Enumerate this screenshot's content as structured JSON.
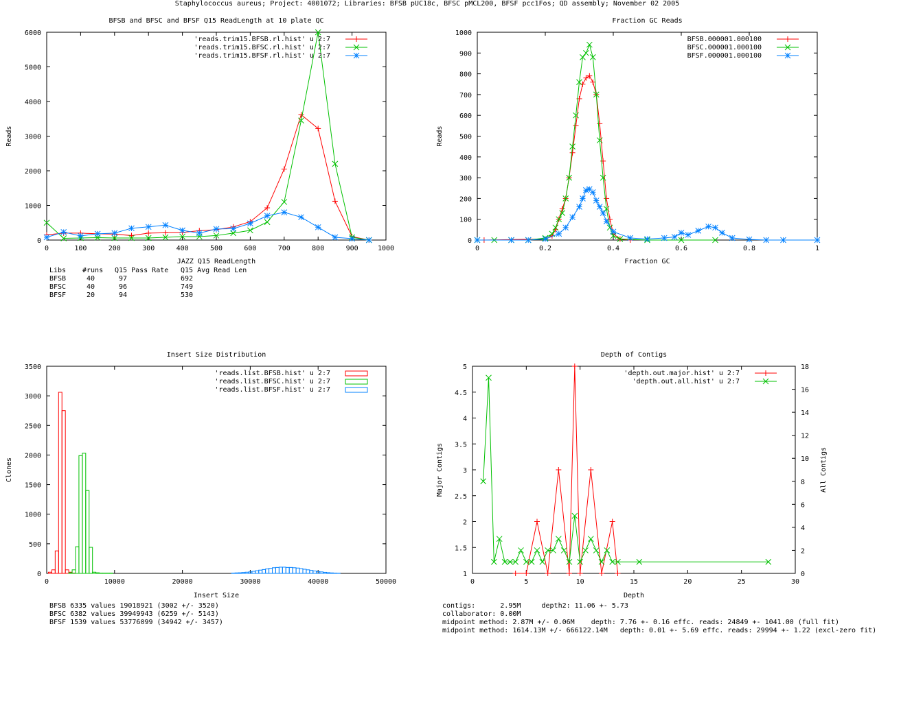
{
  "header": {
    "title": "Staphylococcus aureus; Project: 4001072; Libraries: BFSB pUC18c, BFSC pMCL200, BFSF pcc1Fos; QD assembly; November 02 2005"
  },
  "colors": {
    "red": "#ff0000",
    "green": "#00c000",
    "blue": "#0080ff"
  },
  "chart_data": [
    {
      "id": "readlength",
      "type": "line",
      "title": "BFSB and BFSC and BFSF Q15 ReadLength at 10 plate QC",
      "xlabel": "JAZZ Q15 ReadLength",
      "ylabel": "Reads",
      "xlim": [
        0,
        1000
      ],
      "ylim": [
        0,
        6000
      ],
      "xticks": [
        0,
        100,
        200,
        300,
        400,
        500,
        600,
        700,
        800,
        900,
        1000
      ],
      "yticks": [
        0,
        1000,
        2000,
        3000,
        4000,
        5000,
        6000
      ],
      "legend_position": "top-right",
      "series": [
        {
          "name": "'reads.trim15.BFSB.rl.hist' u 2:7",
          "color": "#ff0000",
          "marker": "plus",
          "x": [
            0,
            50,
            100,
            150,
            200,
            250,
            300,
            350,
            400,
            450,
            500,
            550,
            600,
            650,
            700,
            750,
            800,
            850,
            900,
            950
          ],
          "y": [
            150,
            200,
            200,
            180,
            170,
            130,
            200,
            210,
            220,
            270,
            300,
            380,
            530,
            930,
            2050,
            3620,
            3220,
            1120,
            100,
            0
          ]
        },
        {
          "name": "'reads.trim15.BFSC.rl.hist' u 2:7",
          "color": "#00c000",
          "marker": "cross",
          "x": [
            0,
            50,
            100,
            150,
            200,
            250,
            300,
            350,
            400,
            450,
            500,
            550,
            600,
            650,
            700,
            750,
            800,
            850,
            900,
            950
          ],
          "y": [
            500,
            50,
            60,
            70,
            60,
            60,
            60,
            80,
            100,
            100,
            130,
            200,
            280,
            520,
            1100,
            3450,
            6000,
            2200,
            80,
            0
          ]
        },
        {
          "name": "'reads.trim15.BFSF.rl.hist' u 2:7",
          "color": "#0080ff",
          "marker": "star",
          "x": [
            0,
            50,
            100,
            150,
            200,
            250,
            300,
            350,
            400,
            450,
            500,
            550,
            600,
            650,
            700,
            750,
            800,
            850,
            900,
            950
          ],
          "y": [
            80,
            230,
            120,
            180,
            200,
            340,
            380,
            430,
            280,
            200,
            320,
            330,
            480,
            700,
            800,
            660,
            370,
            80,
            40,
            0
          ]
        }
      ],
      "table": {
        "header": [
          "Libs",
          "#runs",
          "Q15 Pass Rate",
          "Q15 Avg Read Len"
        ],
        "rows": [
          [
            "BFSB",
            "40",
            "97",
            "692"
          ],
          [
            "BFSC",
            "40",
            "96",
            "749"
          ],
          [
            "BFSF",
            "20",
            "94",
            "530"
          ]
        ]
      }
    },
    {
      "id": "gc",
      "type": "line",
      "title": "Fraction GC Reads",
      "xlabel": "Fraction GC",
      "ylabel": "Reads",
      "xlim": [
        0,
        1
      ],
      "ylim": [
        0,
        1000
      ],
      "xticks": [
        0,
        0.2,
        0.4,
        0.6,
        0.8,
        1
      ],
      "yticks": [
        0,
        100,
        200,
        300,
        400,
        500,
        600,
        700,
        800,
        900,
        1000
      ],
      "legend_position": "top-right",
      "series": [
        {
          "name": "BFSB.000001.000100",
          "color": "#ff0000",
          "marker": "plus",
          "x": [
            0,
            0.02,
            0.2,
            0.22,
            0.23,
            0.24,
            0.25,
            0.26,
            0.27,
            0.28,
            0.29,
            0.3,
            0.31,
            0.32,
            0.33,
            0.34,
            0.35,
            0.36,
            0.37,
            0.38,
            0.39,
            0.4,
            0.42,
            0.45
          ],
          "y": [
            0,
            0,
            5,
            20,
            50,
            100,
            150,
            200,
            300,
            420,
            550,
            680,
            750,
            780,
            790,
            760,
            700,
            560,
            380,
            200,
            100,
            30,
            5,
            0
          ]
        },
        {
          "name": "BFSC.000001.000100",
          "color": "#00c000",
          "marker": "cross",
          "x": [
            0,
            0.05,
            0.1,
            0.15,
            0.2,
            0.22,
            0.23,
            0.24,
            0.25,
            0.26,
            0.27,
            0.28,
            0.29,
            0.3,
            0.31,
            0.32,
            0.33,
            0.34,
            0.35,
            0.36,
            0.37,
            0.38,
            0.39,
            0.4,
            0.42,
            0.5,
            0.6,
            0.7
          ],
          "y": [
            0,
            0,
            0,
            0,
            10,
            30,
            60,
            100,
            130,
            200,
            300,
            450,
            600,
            760,
            880,
            900,
            940,
            880,
            700,
            480,
            300,
            150,
            60,
            20,
            5,
            0,
            0,
            0
          ]
        },
        {
          "name": "BFSF.000001.000100",
          "color": "#0080ff",
          "marker": "star",
          "x": [
            0,
            0.1,
            0.15,
            0.2,
            0.24,
            0.26,
            0.28,
            0.3,
            0.31,
            0.32,
            0.33,
            0.34,
            0.35,
            0.36,
            0.37,
            0.38,
            0.4,
            0.45,
            0.5,
            0.55,
            0.58,
            0.6,
            0.62,
            0.65,
            0.68,
            0.7,
            0.72,
            0.75,
            0.8,
            0.85,
            0.9,
            1.0
          ],
          "y": [
            0,
            0,
            0,
            5,
            30,
            60,
            110,
            160,
            200,
            240,
            245,
            230,
            190,
            160,
            130,
            90,
            40,
            10,
            5,
            10,
            15,
            35,
            25,
            45,
            65,
            60,
            35,
            10,
            3,
            0,
            0,
            0
          ]
        }
      ]
    },
    {
      "id": "insert",
      "type": "bar",
      "title": "Insert Size Distribution",
      "xlabel": "Insert Size",
      "ylabel": "Clones",
      "xlim": [
        0,
        50000
      ],
      "ylim": [
        0,
        3500
      ],
      "xticks": [
        0,
        10000,
        20000,
        30000,
        40000,
        50000
      ],
      "yticks": [
        0,
        500,
        1000,
        1500,
        2000,
        2500,
        3000,
        3500
      ],
      "legend_position": "top-right",
      "bin_width": 500,
      "series": [
        {
          "name": "'reads.list.BFSB.hist' u 2:7",
          "color": "#ff0000",
          "x": [
            500,
            1000,
            1500,
            2000,
            2500,
            3000,
            3500,
            4000
          ],
          "y": [
            20,
            60,
            380,
            3060,
            2750,
            60,
            20,
            5
          ]
        },
        {
          "name": "'reads.list.BFSC.hist' u 2:7",
          "color": "#00c000",
          "x": [
            3500,
            4000,
            4500,
            5000,
            5500,
            6000,
            6500,
            7000,
            7500,
            8000,
            8500,
            9000,
            9500
          ],
          "y": [
            10,
            60,
            450,
            1990,
            2030,
            1400,
            440,
            20,
            10,
            5,
            5,
            5,
            5
          ]
        },
        {
          "name": "'reads.list.BFSF.hist' u 2:7",
          "color": "#0080ff",
          "x": [
            27500,
            28000,
            28500,
            29000,
            29500,
            30000,
            30500,
            31000,
            31500,
            32000,
            32500,
            33000,
            33500,
            34000,
            34500,
            35000,
            35500,
            36000,
            36500,
            37000,
            37500,
            38000,
            38500,
            39000,
            39500,
            40000,
            40500,
            41000,
            41500,
            42000,
            42500,
            43000
          ],
          "y": [
            5,
            8,
            10,
            15,
            20,
            25,
            35,
            45,
            55,
            65,
            75,
            85,
            95,
            100,
            105,
            105,
            100,
            100,
            95,
            90,
            80,
            70,
            60,
            50,
            40,
            32,
            25,
            18,
            12,
            8,
            5,
            3
          ]
        }
      ],
      "stats": [
        "BFSB 6335 values 19018921 (3002 +/- 3520)",
        "BFSC 6382 values 39949943 (6259 +/- 5143)",
        "BFSF 1539 values 53776099 (34942 +/- 3457)"
      ]
    },
    {
      "id": "depth",
      "type": "line",
      "title": "Depth of Contigs",
      "xlabel": "Depth",
      "ylabel": "Major Contigs",
      "y2label": "All Contigs",
      "xlim": [
        0,
        30
      ],
      "ylim": [
        1,
        5
      ],
      "y2lim": [
        0,
        18
      ],
      "xticks": [
        0,
        5,
        10,
        15,
        20,
        25,
        30
      ],
      "yticks": [
        1,
        1.5,
        2,
        2.5,
        3,
        3.5,
        4,
        4.5,
        5
      ],
      "y2ticks": [
        0,
        2,
        4,
        6,
        8,
        10,
        12,
        14,
        16,
        18
      ],
      "legend_position": "top-right",
      "series": [
        {
          "name": "'depth.out.major.hist' u 2:7",
          "color": "#ff0000",
          "marker": "plus",
          "axis": "y",
          "x": [
            4,
            5,
            6,
            7,
            8,
            9,
            9.5,
            10,
            11,
            12,
            13,
            13.5
          ],
          "y": [
            1,
            1,
            2,
            1,
            3,
            1,
            5,
            1,
            3,
            1,
            2,
            1
          ]
        },
        {
          "name": "'depth.out.all.hist' u 2:7",
          "color": "#00c000",
          "marker": "cross",
          "axis": "y2",
          "x": [
            1,
            1.5,
            2,
            2.5,
            3,
            3.5,
            4,
            4.5,
            5,
            5.5,
            6,
            6.5,
            7,
            7.5,
            8,
            8.5,
            9,
            9.5,
            10,
            10.5,
            11,
            11.5,
            12,
            12.5,
            13,
            13.5,
            15.5,
            27.5
          ],
          "y": [
            8,
            17,
            1,
            3,
            1,
            1,
            1,
            2,
            1,
            1,
            2,
            1,
            2,
            2,
            3,
            2,
            1,
            5,
            1,
            2,
            3,
            2,
            1,
            2,
            1,
            1,
            1,
            1
          ]
        }
      ],
      "stats": [
        "contigs:      2.95M     depth2: 11.06 +- 5.73",
        "collaborator: 0.00M",
        "midpoint method: 2.87M +/- 0.06M    depth: 7.76 +- 0.16 effc. reads: 24849 +- 1041.00 (full fit)",
        "midpoint method: 1614.13M +/- 666122.14M   depth: 0.01 +- 5.69 effc. reads: 29994 +- 1.22 (excl-zero fit)"
      ]
    }
  ]
}
